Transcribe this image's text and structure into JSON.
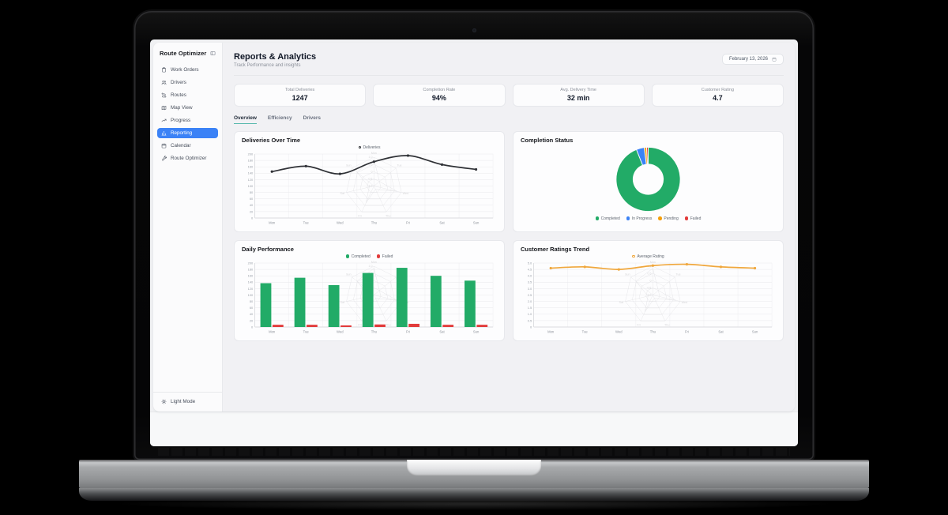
{
  "app": {
    "sidebar": {
      "title": "Route Optimizer",
      "items": [
        {
          "label": "Work Orders",
          "icon": "clipboard"
        },
        {
          "label": "Drivers",
          "icon": "users"
        },
        {
          "label": "Routes",
          "icon": "route"
        },
        {
          "label": "Map View",
          "icon": "map"
        },
        {
          "label": "Progress",
          "icon": "trend"
        },
        {
          "label": "Reporting",
          "icon": "chart",
          "active": true
        },
        {
          "label": "Calendar",
          "icon": "calendar"
        },
        {
          "label": "Route Optimizer",
          "icon": "wrench"
        }
      ],
      "footer": {
        "label": "Light Mode",
        "icon": "sun"
      }
    },
    "header": {
      "title": "Reports & Analytics",
      "subtitle": "Track Performance and insights",
      "date": "February 13, 2026"
    },
    "stats": [
      {
        "label": "Total Deliveries",
        "value": "1247"
      },
      {
        "label": "Completion Rate",
        "value": "94%"
      },
      {
        "label": "Avg. Delivery Time",
        "value": "32 min"
      },
      {
        "label": "Customer Rating",
        "value": "4.7"
      }
    ],
    "tabs": [
      {
        "label": "Overview",
        "active": true
      },
      {
        "label": "Efficiency"
      },
      {
        "label": "Drivers"
      }
    ]
  },
  "colors": {
    "accent_blue": "#3b82f6",
    "tab_active_underline": "#56b8ac",
    "completed_green": "#22ab67",
    "failed_red": "#e23b3b",
    "pending_orange": "#f59e0b",
    "rating_orange": "#f0a73c",
    "deliveries_line": "#2f3136"
  },
  "ghost_radar": {
    "categories": [
      "Mon",
      "Tue",
      "Wed",
      "Thu",
      "Fri",
      "Sat",
      "Sun"
    ],
    "ticks": [
      "1.0",
      "0.5",
      "0",
      "-0.5",
      "-1.0"
    ],
    "values": [
      0.85,
      -0.5,
      0.7,
      -0.75,
      0.3,
      -0.65,
      0.55
    ]
  },
  "chart_data": [
    {
      "type": "line",
      "title": "Deliveries Over Time",
      "legend": [
        {
          "label": "Deliveries",
          "color": "#2f3136"
        }
      ],
      "categories": [
        "Mon",
        "Tue",
        "Wed",
        "Thu",
        "Fri",
        "Sat",
        "Sun"
      ],
      "values": [
        145,
        162,
        138,
        176,
        195,
        167,
        152
      ],
      "ylim": [
        0,
        200
      ],
      "ytick_step": 20,
      "line_color": "#2f3136",
      "grid": true,
      "ghost_radar": true,
      "legend_position": "top"
    },
    {
      "type": "pie",
      "title": "Completion Status",
      "segments": [
        {
          "label": "Completed",
          "value": 94,
          "color": "#22ab67"
        },
        {
          "label": "In Progress",
          "value": 4,
          "color": "#3b82f6"
        },
        {
          "label": "Pending",
          "value": 1.2,
          "color": "#f59e0b"
        },
        {
          "label": "Failed",
          "value": 0.8,
          "color": "#e23b3b"
        }
      ],
      "donut": true,
      "legend_position": "bottom"
    },
    {
      "type": "bar",
      "title": "Daily Performance",
      "categories": [
        "Mon",
        "Tue",
        "Wed",
        "Thu",
        "Fri",
        "Sat",
        "Sun"
      ],
      "series": [
        {
          "name": "Completed",
          "color": "#22ab67",
          "values": [
            137,
            154,
            131,
            169,
            185,
            160,
            145
          ]
        },
        {
          "name": "Failed",
          "color": "#e23b3b",
          "values": [
            7,
            7,
            5,
            8,
            10,
            7,
            7
          ]
        }
      ],
      "ylim": [
        0,
        200
      ],
      "ytick_step": 20,
      "grid": true,
      "ghost_radar": true,
      "legend_position": "top"
    },
    {
      "type": "line",
      "title": "Customer Ratings Trend",
      "legend": [
        {
          "label": "Average Rating",
          "color": "#f0a73c"
        }
      ],
      "categories": [
        "Mon",
        "Tue",
        "Wed",
        "Thu",
        "Fri",
        "Sat",
        "Sun"
      ],
      "values": [
        4.6,
        4.7,
        4.5,
        4.8,
        4.9,
        4.7,
        4.6
      ],
      "ylim": [
        0,
        5
      ],
      "ytick_step": 0.5,
      "line_color": "#f0a73c",
      "grid": true,
      "ghost_radar": true,
      "legend_position": "top"
    }
  ]
}
